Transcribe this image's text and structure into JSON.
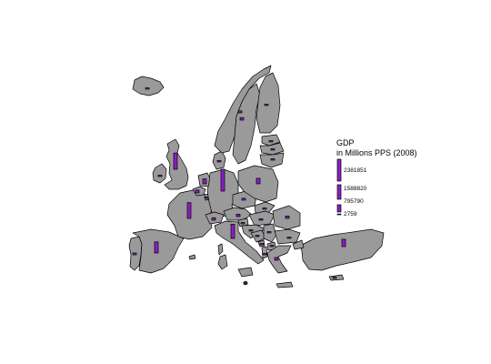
{
  "map": {
    "bar_color": "#8b1fc4",
    "land_color": "#9a9a9a",
    "border_color": "#000000",
    "countries": [
      {
        "code": "IE",
        "gdp": 150000
      },
      {
        "code": "UK",
        "gdp": 1770000
      },
      {
        "code": "PT",
        "gdp": 200000
      },
      {
        "code": "ES",
        "gdp": 1210000
      },
      {
        "code": "FR",
        "gdp": 1720000
      },
      {
        "code": "BE",
        "gdp": 310000
      },
      {
        "code": "NL",
        "gdp": 530000
      },
      {
        "code": "LU",
        "gdp": 34000
      },
      {
        "code": "DE",
        "gdp": 2381851
      },
      {
        "code": "DK",
        "gdp": 170000
      },
      {
        "code": "NO",
        "gdp": 220000
      },
      {
        "code": "SE",
        "gdp": 280000
      },
      {
        "code": "FI",
        "gdp": 150000
      },
      {
        "code": "EE",
        "gdp": 23000
      },
      {
        "code": "LV",
        "gdp": 32000
      },
      {
        "code": "LT",
        "gdp": 53000
      },
      {
        "code": "PL",
        "gdp": 600000
      },
      {
        "code": "CZ",
        "gdp": 210000
      },
      {
        "code": "SK",
        "gdp": 95000
      },
      {
        "code": "AT",
        "gdp": 260000
      },
      {
        "code": "CH",
        "gdp": 270000
      },
      {
        "code": "IT",
        "gdp": 1550000
      },
      {
        "code": "SI",
        "gdp": 45000
      },
      {
        "code": "HR",
        "gdp": 60000
      },
      {
        "code": "HU",
        "gdp": 160000
      },
      {
        "code": "RO",
        "gdp": 260000
      },
      {
        "code": "BG",
        "gdp": 80000
      },
      {
        "code": "RS",
        "gdp": 60000
      },
      {
        "code": "BA",
        "gdp": 25000
      },
      {
        "code": "ME",
        "gdp": 6000
      },
      {
        "code": "AL",
        "gdp": 20000
      },
      {
        "code": "MK",
        "gdp": 18000
      },
      {
        "code": "GR",
        "gdp": 300000
      },
      {
        "code": "TR",
        "gdp": 800000
      },
      {
        "code": "CY",
        "gdp": 20000
      },
      {
        "code": "MT",
        "gdp": 2759
      },
      {
        "code": "IS",
        "gdp": 10000
      }
    ]
  },
  "legend": {
    "title_line1": "GDP",
    "title_line2": "in Millions PPS (2008)",
    "items": [
      {
        "label": "2381851",
        "value": 2381851
      },
      {
        "label": "1588820",
        "value": 1588820
      },
      {
        "label": "795790",
        "value": 795790
      },
      {
        "label": "2759",
        "value": 2759
      }
    ]
  }
}
